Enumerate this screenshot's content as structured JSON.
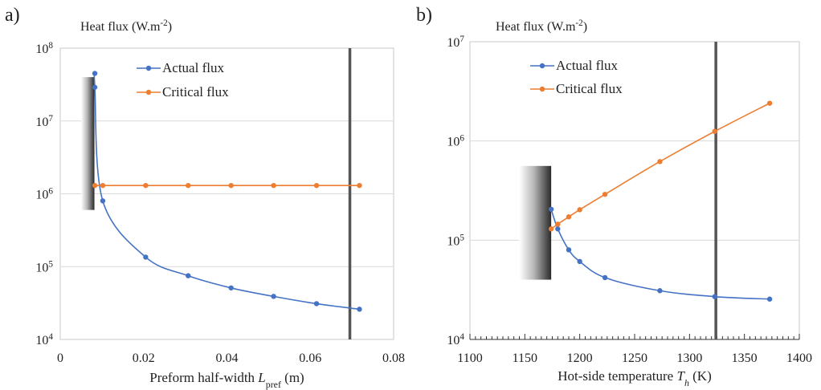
{
  "chart_data": [
    {
      "panel_label": "a)",
      "type": "line",
      "ylabel": "Heat flux (W.m⁻²)",
      "xlabel_parts": [
        "Preform half-width ",
        "L",
        "pref",
        " (m)"
      ],
      "yscale": "log",
      "ylim_exp": [
        4,
        8
      ],
      "ytick_labels": [
        {
          "base": "10",
          "exp": "4"
        },
        {
          "base": "10",
          "exp": "5"
        },
        {
          "base": "10",
          "exp": "6"
        },
        {
          "base": "10",
          "exp": "7"
        },
        {
          "base": "10",
          "exp": "8"
        }
      ],
      "xlim": [
        0,
        0.08
      ],
      "xticks": [
        0,
        0.02,
        0.04,
        0.06,
        0.08
      ],
      "xtick_labels": [
        "0",
        "0.02",
        "0.04",
        "0.06",
        "0.08"
      ],
      "vertical_line_x": 0.0695,
      "shade_x": [
        0.005,
        0.0082
      ],
      "shade_y": [
        600000,
        40000000
      ],
      "series": [
        {
          "name": "Actual flux",
          "color": "#4472c4",
          "x": [
            0.0083,
            0.0083,
            0.0102,
            0.0205,
            0.0307,
            0.041,
            0.0512,
            0.0615,
            0.0718
          ],
          "y": [
            45000000,
            29000000,
            800000,
            135000,
            75000,
            51000,
            39000,
            31000,
            26000
          ]
        },
        {
          "name": "Critical flux",
          "color": "#ed7d31",
          "x": [
            0.0083,
            0.0102,
            0.0205,
            0.0307,
            0.041,
            0.0512,
            0.0615,
            0.0718
          ],
          "y": [
            1300000,
            1300000,
            1300000,
            1300000,
            1300000,
            1300000,
            1300000,
            1300000
          ]
        }
      ]
    },
    {
      "panel_label": "b)",
      "type": "line",
      "ylabel": "Heat flux (W.m⁻²)",
      "xlabel_parts": [
        "Hot-side temperature ",
        "T",
        "h",
        " (K)"
      ],
      "yscale": "log",
      "ylim_exp": [
        4,
        7
      ],
      "ytick_labels": [
        {
          "base": "10",
          "exp": "4"
        },
        {
          "base": "10",
          "exp": "5"
        },
        {
          "base": "10",
          "exp": "6"
        },
        {
          "base": "10",
          "exp": "7"
        }
      ],
      "xlim": [
        1100,
        1400
      ],
      "xticks": [
        1100,
        1150,
        1200,
        1250,
        1300,
        1350,
        1400
      ],
      "xtick_labels": [
        "1100",
        "1150",
        "1200",
        "1250",
        "1300",
        "1350",
        "1400"
      ],
      "vertical_line_x": 1324,
      "shade_x": [
        1145,
        1174
      ],
      "shade_y": [
        40000,
        560000
      ],
      "series": [
        {
          "name": "Actual flux",
          "color": "#4472c4",
          "x": [
            1174,
            1180,
            1190,
            1200,
            1223,
            1273,
            1323,
            1373
          ],
          "y": [
            205000,
            130000,
            80000,
            61000,
            42000,
            31000,
            27000,
            25500
          ]
        },
        {
          "name": "Critical flux",
          "color": "#ed7d31",
          "x": [
            1174,
            1180,
            1190,
            1200,
            1223,
            1273,
            1323,
            1373
          ],
          "y": [
            130000,
            145000,
            172000,
            203000,
            290000,
            620000,
            1250000,
            2400000
          ]
        }
      ]
    }
  ]
}
